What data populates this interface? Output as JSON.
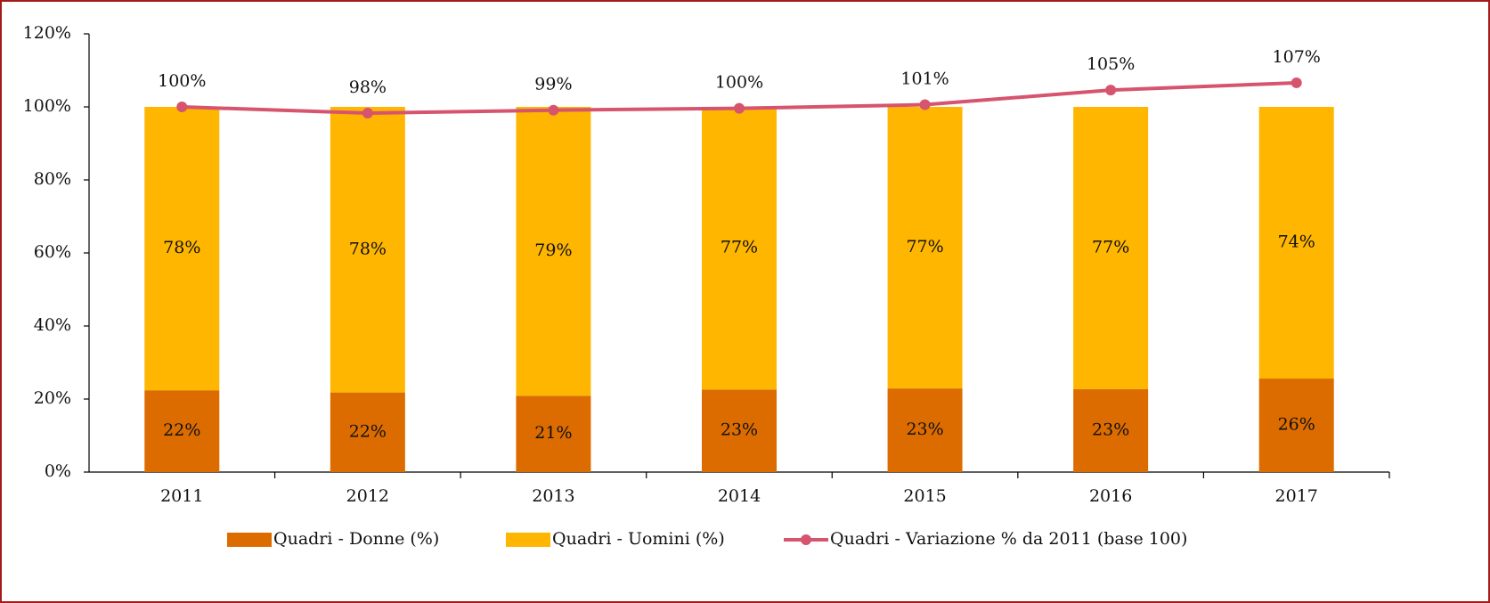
{
  "chart_data": {
    "type": "bar",
    "stacked": true,
    "categories": [
      "2011",
      "2012",
      "2013",
      "2014",
      "2015",
      "2016",
      "2017"
    ],
    "series": [
      {
        "name": "Quadri - Donne (%)",
        "type": "bar",
        "color": "#dc6c00",
        "values": [
          22.4,
          21.8,
          20.9,
          22.6,
          22.9,
          22.7,
          25.6
        ],
        "value_labels": [
          "22%",
          "22%",
          "21%",
          "23%",
          "23%",
          "23%",
          "26%"
        ]
      },
      {
        "name": "Quadri - Uomini (%)",
        "type": "bar",
        "color": "#ffb600",
        "values": [
          77.6,
          78.2,
          79.1,
          77.4,
          77.1,
          77.3,
          74.4
        ],
        "value_labels": [
          "78%",
          "78%",
          "79%",
          "77%",
          "77%",
          "77%",
          "74%"
        ]
      },
      {
        "name": "Quadri - Variazione % da 2011 (base 100)",
        "type": "line",
        "color": "#d6546e",
        "values": [
          100,
          98.3,
          99.1,
          99.6,
          100.6,
          104.6,
          106.6
        ],
        "value_labels": [
          "100%",
          "98%",
          "99%",
          "100%",
          "101%",
          "105%",
          "107%"
        ]
      }
    ],
    "ylim": [
      0,
      120
    ],
    "yticks": [
      {
        "value": 0,
        "label": "0%"
      },
      {
        "value": 20,
        "label": "20%"
      },
      {
        "value": 40,
        "label": "40%"
      },
      {
        "value": 60,
        "label": "60%"
      },
      {
        "value": 80,
        "label": "80%"
      },
      {
        "value": 100,
        "label": "100%"
      },
      {
        "value": 120,
        "label": "120%"
      }
    ],
    "grid": false,
    "legend": "bottom"
  }
}
